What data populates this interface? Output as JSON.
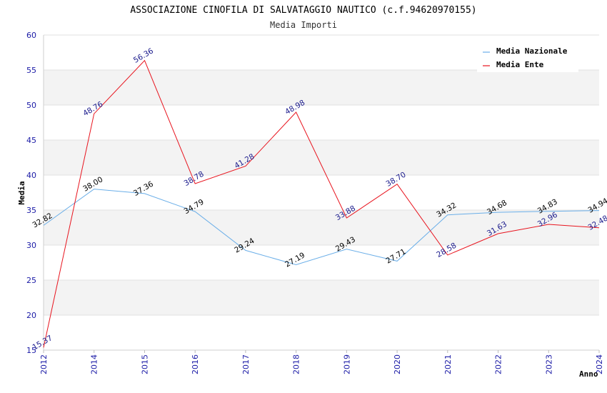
{
  "chart_data": {
    "type": "line",
    "title": "ASSOCIAZIONE CINOFILA DI SALVATAGGIO NAUTICO (c.f.94620970155)",
    "subtitle": "Media Importi",
    "xlabel": "Anno",
    "ylabel": "Media",
    "ylim": [
      15,
      60
    ],
    "yticks": [
      "15",
      "20",
      "25",
      "30",
      "35",
      "40",
      "45",
      "50",
      "55",
      "60"
    ],
    "categories": [
      "2012",
      "2014",
      "2015",
      "2016",
      "2017",
      "2018",
      "2019",
      "2020",
      "2021",
      "2022",
      "2023",
      "2024"
    ],
    "legend_position": "top-right",
    "grid": "horizontal alternating bands",
    "series": [
      {
        "name": "Media Nazionale",
        "color": "#6aaee8",
        "label_color": "#000000",
        "values": [
          32.82,
          38.0,
          37.36,
          34.79,
          29.24,
          27.19,
          29.43,
          27.71,
          34.32,
          34.68,
          34.83,
          34.94
        ],
        "labels": [
          "32.82",
          "38.00",
          "37.36",
          "34.79",
          "29.24",
          "27.19",
          "29.43",
          "27.71",
          "34.32",
          "34.68",
          "34.83",
          "34.94"
        ]
      },
      {
        "name": "Media Ente",
        "color": "#e8141e",
        "label_color": "#1a1a8c",
        "values": [
          15.37,
          48.76,
          56.36,
          38.78,
          41.28,
          48.98,
          33.88,
          38.7,
          28.58,
          31.63,
          32.96,
          32.48
        ],
        "labels": [
          "15.37",
          "48.76",
          "56.36",
          "38.78",
          "41.28",
          "48.98",
          "33.88",
          "38.70",
          "28.58",
          "31.63",
          "32.96",
          "32.48"
        ]
      }
    ]
  }
}
